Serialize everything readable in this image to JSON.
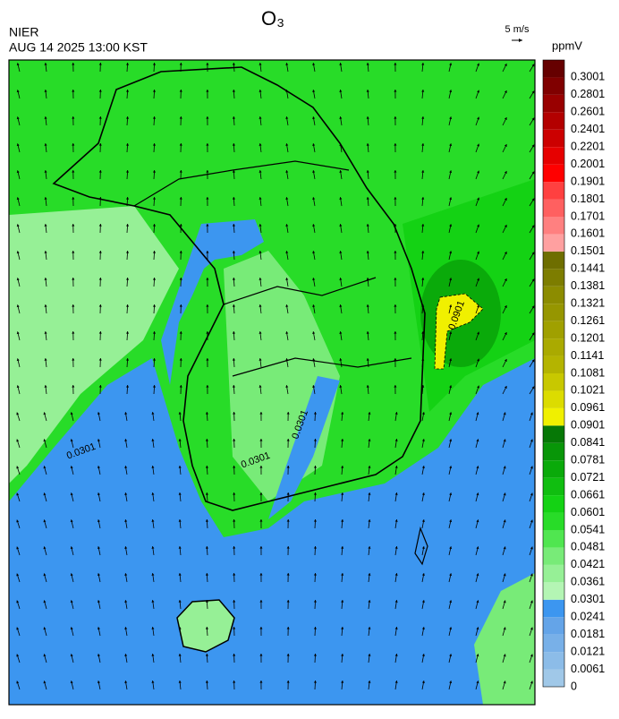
{
  "header": {
    "title": "O₃",
    "agency": "NIER",
    "timestamp": "AUG 14 2025 13:00 KST"
  },
  "wind_legend": {
    "label": "5 m/s"
  },
  "colorbar": {
    "unit": "ppmV",
    "levels": [
      0,
      0.0061,
      0.0121,
      0.0181,
      0.0241,
      0.0301,
      0.0361,
      0.0421,
      0.0481,
      0.0541,
      0.0601,
      0.0661,
      0.0721,
      0.0781,
      0.0841,
      0.0901,
      0.0961,
      0.1021,
      0.1081,
      0.1141,
      0.1201,
      0.1261,
      0.1321,
      0.1381,
      0.1441,
      0.1501,
      0.1601,
      0.1701,
      0.1801,
      0.1901,
      0.2001,
      0.2201,
      0.2401,
      0.2601,
      0.2801,
      0.3001
    ],
    "colors": [
      "#a0c8e8",
      "#8cbce8",
      "#78b0e8",
      "#64a4e8",
      "#3c96f0",
      "#b4f5b4",
      "#96f096",
      "#78eb78",
      "#50e650",
      "#28dc28",
      "#14d214",
      "#10be10",
      "#0aaa0a",
      "#089608",
      "#067806",
      "#f0f000",
      "#dcdc00",
      "#c8c800",
      "#b4b400",
      "#aaaa00",
      "#a0a000",
      "#969600",
      "#8c8c00",
      "#7d7d00",
      "#6e6e00",
      "#ffa0a0",
      "#ff8080",
      "#ff6060",
      "#ff4040",
      "#ff0000",
      "#e60000",
      "#cc0000",
      "#b30000",
      "#990000",
      "#800000",
      "#660000"
    ]
  },
  "map": {
    "contour_labels": [
      "0.0901",
      "0.0301",
      "0.0301",
      "0.0301"
    ]
  }
}
